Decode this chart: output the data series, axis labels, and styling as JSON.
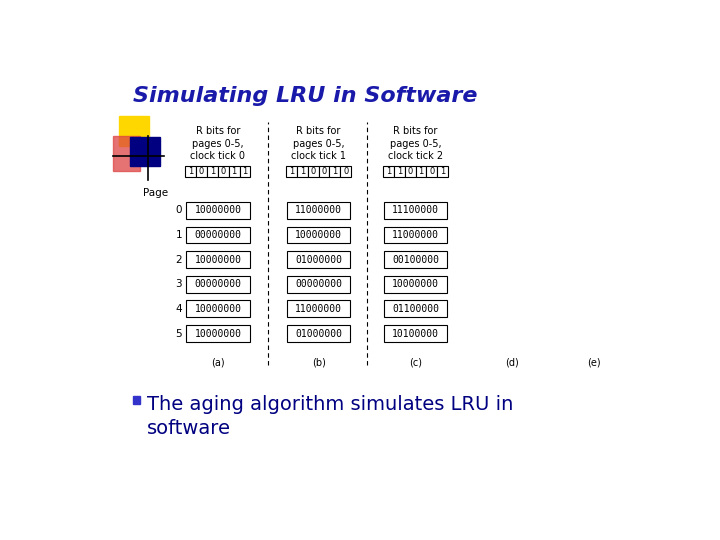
{
  "title": "Simulating LRU in Software",
  "title_color": "#1a1aaa",
  "title_fontsize": 16,
  "bg_color": "#ffffff",
  "col_headers": [
    "R bits for\npages 0-5,\nclock tick 0",
    "R bits for\npages 0-5,\nclock tick 1",
    "R bits for\npages 0-5,\nclock tick 2"
  ],
  "r_bits_row": [
    [
      "1",
      "0",
      "1",
      "0",
      "1",
      "1"
    ],
    [
      "1",
      "1",
      "0",
      "0",
      "1",
      "0"
    ],
    [
      "1",
      "1",
      "0",
      "1",
      "0",
      "1"
    ]
  ],
  "pages": [
    0,
    1,
    2,
    3,
    4,
    5
  ],
  "page_data": [
    [
      "10000000",
      "11000000",
      "11100000"
    ],
    [
      "00000000",
      "10000000",
      "11000000"
    ],
    [
      "10000000",
      "01000000",
      "00100000"
    ],
    [
      "00000000",
      "00000000",
      "10000000"
    ],
    [
      "10000000",
      "11000000",
      "01100000"
    ],
    [
      "10000000",
      "01000000",
      "10100000"
    ]
  ],
  "col_labels": [
    "(a)",
    "(b)",
    "(c)",
    "(d)",
    "(e)"
  ],
  "bullet_text": "The aging algorithm simulates LRU in\nsoftware",
  "bullet_color": "#000080",
  "bullet_marker_color": "#3333cc",
  "logo_colors": {
    "yellow": "#FFD700",
    "red": "#dd4444",
    "blue": "#000080"
  }
}
